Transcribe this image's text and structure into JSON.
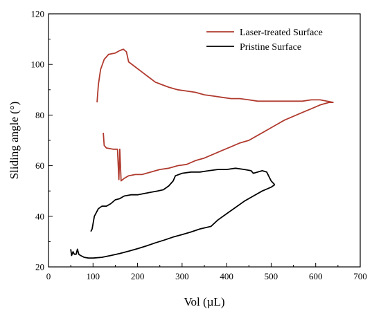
{
  "chart_data": {
    "type": "line",
    "title": "",
    "xlabel": "Vol (µL)",
    "ylabel": "Sliding angle (°)",
    "xlim": [
      0,
      700
    ],
    "ylim": [
      20,
      120
    ],
    "xticks": [
      0,
      100,
      200,
      300,
      400,
      500,
      600,
      700
    ],
    "yticks": [
      20,
      40,
      60,
      80,
      100,
      120
    ],
    "grid": false,
    "legend_position": "top-right",
    "series": [
      {
        "name": "Laser-treated Surface",
        "color": "#b03a2e",
        "segments": [
          [
            [
              109,
              85
            ],
            [
              112,
              92
            ],
            [
              117,
              98
            ],
            [
              125,
              102
            ],
            [
              135,
              104
            ],
            [
              150,
              104.5
            ],
            [
              160,
              105.5
            ],
            [
              168,
              106
            ],
            [
              175,
              105
            ],
            [
              180,
              101
            ],
            [
              195,
              99
            ],
            [
              210,
              97
            ],
            [
              225,
              95
            ],
            [
              240,
              93
            ],
            [
              255,
              92
            ],
            [
              270,
              91
            ],
            [
              290,
              90
            ],
            [
              310,
              89.5
            ],
            [
              330,
              89
            ],
            [
              350,
              88
            ],
            [
              370,
              87.5
            ],
            [
              390,
              87
            ],
            [
              410,
              86.5
            ],
            [
              430,
              86.5
            ],
            [
              450,
              86
            ],
            [
              470,
              85.5
            ],
            [
              490,
              85.5
            ],
            [
              510,
              85.5
            ],
            [
              530,
              85.5
            ],
            [
              550,
              85.5
            ],
            [
              570,
              85.5
            ],
            [
              590,
              86
            ],
            [
              610,
              86
            ],
            [
              625,
              85.5
            ],
            [
              640,
              85
            ]
          ],
          [
            [
              123,
              73
            ],
            [
              125,
              68
            ],
            [
              130,
              67
            ],
            [
              145,
              66.5
            ],
            [
              155,
              66.5
            ],
            [
              158,
              54.5
            ],
            [
              160,
              66.5
            ],
            [
              163,
              54
            ],
            [
              170,
              55
            ],
            [
              180,
              56
            ],
            [
              195,
              56.5
            ],
            [
              210,
              56.5
            ],
            [
              230,
              57.5
            ],
            [
              250,
              58.5
            ],
            [
              270,
              59
            ],
            [
              290,
              60
            ],
            [
              310,
              60.5
            ],
            [
              330,
              62
            ],
            [
              350,
              63
            ],
            [
              370,
              64.5
            ],
            [
              390,
              66
            ],
            [
              410,
              67.5
            ],
            [
              430,
              69
            ],
            [
              450,
              70
            ],
            [
              470,
              72
            ],
            [
              490,
              74
            ],
            [
              510,
              76
            ],
            [
              530,
              78
            ],
            [
              550,
              79.5
            ],
            [
              570,
              81
            ],
            [
              590,
              82.5
            ],
            [
              610,
              84
            ],
            [
              630,
              85
            ],
            [
              640,
              85
            ]
          ]
        ]
      },
      {
        "name": "Pristine Surface",
        "color": "#000000",
        "segments": [
          [
            [
              50,
              27
            ],
            [
              52,
              24.5
            ],
            [
              55,
              26
            ],
            [
              58,
              25
            ],
            [
              62,
              25
            ],
            [
              65,
              27
            ],
            [
              68,
              25
            ],
            [
              72,
              24.5
            ],
            [
              80,
              23.8
            ],
            [
              90,
              23.5
            ],
            [
              100,
              23.5
            ],
            [
              120,
              23.8
            ],
            [
              140,
              24.5
            ],
            [
              160,
              25.3
            ],
            [
              180,
              26.2
            ],
            [
              200,
              27.2
            ],
            [
              220,
              28.3
            ],
            [
              240,
              29.5
            ],
            [
              260,
              30.6
            ],
            [
              280,
              31.8
            ],
            [
              300,
              32.8
            ],
            [
              320,
              33.8
            ],
            [
              340,
              35
            ],
            [
              365,
              36
            ],
            [
              380,
              38.5
            ],
            [
              400,
              41
            ],
            [
              420,
              43.5
            ],
            [
              440,
              46
            ],
            [
              460,
              48
            ],
            [
              480,
              50
            ],
            [
              500,
              51.5
            ],
            [
              508,
              52.5
            ]
          ],
          [
            [
              95,
              34
            ],
            [
              98,
              35
            ],
            [
              103,
              40
            ],
            [
              112,
              43
            ],
            [
              120,
              44
            ],
            [
              130,
              44
            ],
            [
              140,
              45
            ],
            [
              150,
              46.5
            ],
            [
              160,
              47
            ],
            [
              170,
              48
            ],
            [
              185,
              48.5
            ],
            [
              200,
              48.5
            ],
            [
              215,
              49
            ],
            [
              230,
              49.5
            ],
            [
              245,
              50
            ],
            [
              258,
              50.5
            ],
            [
              270,
              52
            ],
            [
              280,
              54
            ],
            [
              285,
              56
            ],
            [
              300,
              57
            ],
            [
              320,
              57.5
            ],
            [
              340,
              57.5
            ],
            [
              360,
              58
            ],
            [
              380,
              58.5
            ],
            [
              400,
              58.5
            ],
            [
              420,
              59
            ],
            [
              440,
              58.5
            ],
            [
              455,
              58
            ],
            [
              460,
              57
            ],
            [
              470,
              57.5
            ],
            [
              480,
              58
            ],
            [
              490,
              57.5
            ],
            [
              500,
              54
            ],
            [
              508,
              52.5
            ]
          ]
        ]
      }
    ]
  }
}
